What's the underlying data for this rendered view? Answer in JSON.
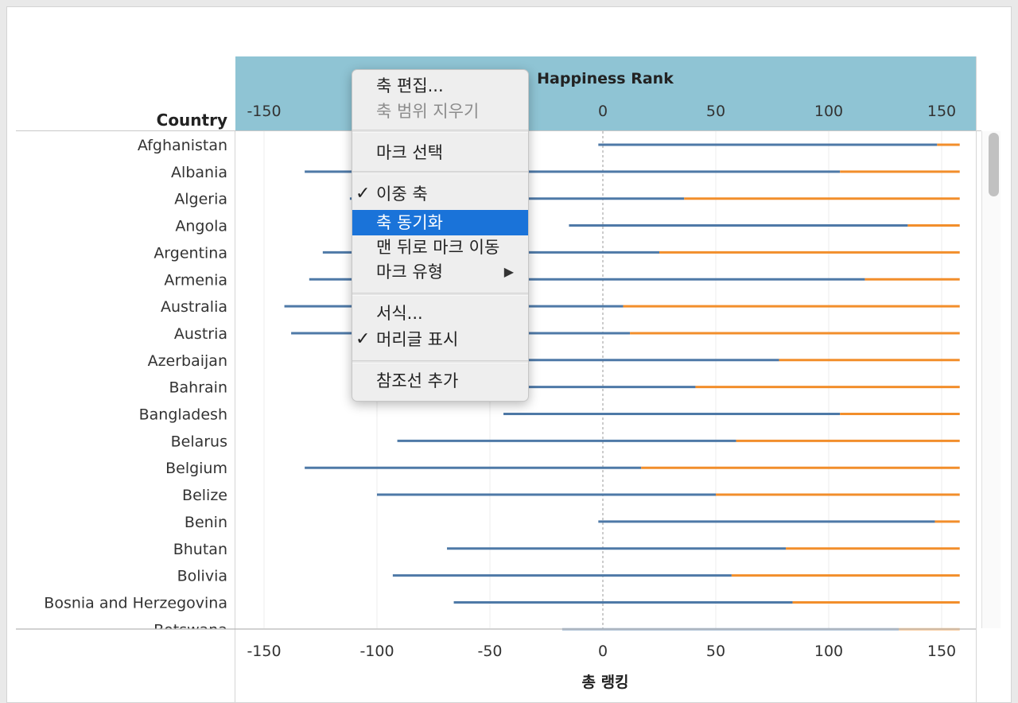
{
  "view": {
    "row_header_label": "Country",
    "top_axis_title": "Happiness Rank",
    "bottom_axis_title": "총 랭킹",
    "top_axis_ticks": [
      "-150",
      "0",
      "50",
      "100",
      "150"
    ],
    "bottom_axis_ticks": [
      "-150",
      "-100",
      "-50",
      "0",
      "50",
      "100",
      "150"
    ],
    "header_band_color": "#8fc4d4"
  },
  "chart_data": {
    "type": "bar",
    "orientation": "horizontal",
    "title": "",
    "xlabel": "총 랭킹",
    "x2label": "Happiness Rank",
    "ylabel": "Country",
    "xlim": [
      -165,
      165
    ],
    "grid": true,
    "categories": [
      "Afghanistan",
      "Albania",
      "Algeria",
      "Angola",
      "Argentina",
      "Armenia",
      "Australia",
      "Austria",
      "Azerbaijan",
      "Bahrain",
      "Bangladesh",
      "Belarus",
      "Belgium",
      "Belize",
      "Benin",
      "Bhutan",
      "Bolivia",
      "Bosnia and Herzegovina",
      "Botswana"
    ],
    "series": [
      {
        "color": "#4e79a7",
        "start": [
          -2,
          -132,
          -112,
          -15,
          -124,
          -130,
          -141,
          -138,
          -52,
          -59,
          -44,
          -91,
          -132,
          -100,
          -2,
          -69,
          -93,
          -66,
          -18
        ],
        "end": [
          148,
          105,
          36,
          135,
          25,
          116,
          9,
          12,
          78,
          41,
          105,
          59,
          17,
          50,
          147,
          81,
          57,
          84,
          131
        ]
      },
      {
        "color": "#f28e2b",
        "start": [
          148,
          105,
          36,
          135,
          25,
          116,
          9,
          12,
          78,
          41,
          105,
          59,
          17,
          50,
          147,
          81,
          57,
          84,
          131
        ],
        "end": [
          158,
          158,
          158,
          158,
          158,
          158,
          158,
          158,
          158,
          158,
          158,
          158,
          158,
          158,
          158,
          158,
          158,
          158,
          158
        ]
      }
    ]
  },
  "context_menu": {
    "items": [
      {
        "label": "축 편집...",
        "enabled": true
      },
      {
        "label": "축 범위 지우기",
        "enabled": false
      },
      {
        "label": "마크 선택",
        "enabled": true
      },
      {
        "label": "이중 축",
        "enabled": true,
        "checked": true
      },
      {
        "label": "축 동기화",
        "enabled": true,
        "highlighted": true
      },
      {
        "label": "맨 뒤로 마크 이동",
        "enabled": true
      },
      {
        "label": "마크 유형",
        "enabled": true,
        "submenu": true
      },
      {
        "label": "서식...",
        "enabled": true
      },
      {
        "label": "머리글 표시",
        "enabled": true,
        "checked": true
      },
      {
        "label": "참조선 추가",
        "enabled": true
      }
    ],
    "check_glyph": "✓",
    "submenu_glyph": "▶"
  }
}
